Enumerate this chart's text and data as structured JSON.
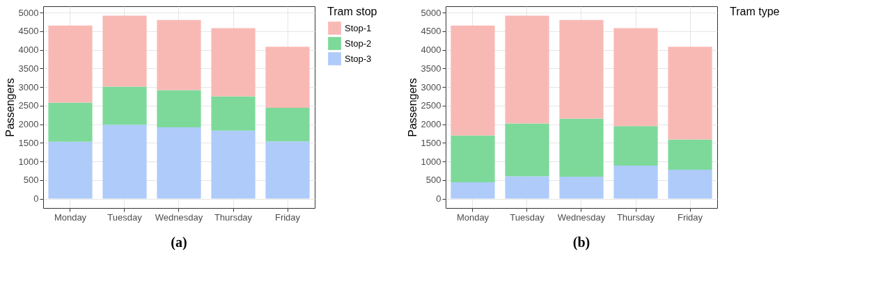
{
  "chart_data": [
    {
      "type": "bar",
      "stacked": true,
      "ylabel": "Passengers",
      "legend_title": "Tram stop",
      "legend": "right",
      "grid": true,
      "categories": [
        "Monday",
        "Tuesday",
        "Wednesday",
        "Thursday",
        "Friday"
      ],
      "ylim": [
        -250,
        5170
      ],
      "yticks": [
        0,
        500,
        1000,
        1500,
        2000,
        2500,
        3000,
        3500,
        4000,
        4500,
        5000
      ],
      "series": [
        {
          "name": "Stop-3",
          "color": "#aecbfa",
          "values": [
            1530,
            1990,
            1920,
            1830,
            1540
          ]
        },
        {
          "name": "Stop-2",
          "color": "#7dd99a",
          "values": [
            1050,
            1020,
            1000,
            920,
            900
          ]
        },
        {
          "name": "Stop-1",
          "color": "#f8b9b5",
          "values": [
            2070,
            1910,
            1880,
            1830,
            1640
          ]
        }
      ],
      "annotations": [
        "(a)"
      ]
    },
    {
      "type": "bar",
      "stacked": true,
      "ylabel": "Passengers",
      "legend_title": "Tram type",
      "legend": "right",
      "grid": true,
      "categories": [
        "Monday",
        "Tuesday",
        "Wednesday",
        "Thursday",
        "Friday"
      ],
      "ylim": [
        -250,
        5170
      ],
      "yticks": [
        0,
        500,
        1000,
        1500,
        2000,
        2500,
        3000,
        3500,
        4000,
        4500,
        5000
      ],
      "series": [
        {
          "color": "#aecbfa",
          "values": [
            440,
            600,
            590,
            890,
            780
          ]
        },
        {
          "color": "#7dd99a",
          "values": [
            1260,
            1420,
            1560,
            1060,
            810
          ]
        },
        {
          "color": "#f8b9b5",
          "values": [
            2950,
            2900,
            2650,
            2630,
            2490
          ]
        }
      ],
      "annotations": [
        "(b)"
      ]
    }
  ]
}
